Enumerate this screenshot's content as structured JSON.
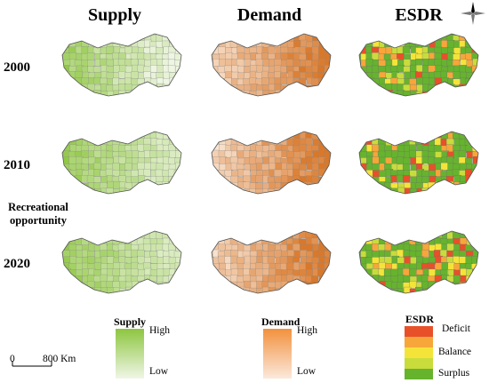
{
  "columns": [
    "Supply",
    "Demand",
    "ESDR"
  ],
  "rows": [
    "2000",
    "2010",
    "2020"
  ],
  "side_label": [
    "Recreational",
    "opportunity"
  ],
  "legends": {
    "supply": {
      "title": "Supply",
      "high": "High",
      "low": "Low",
      "colors": [
        "#8dc63f",
        "#f0f6e6"
      ]
    },
    "demand": {
      "title": "Demand",
      "high": "High",
      "low": "Low",
      "colors": [
        "#f2913d",
        "#fbe9dc"
      ]
    },
    "esdr": {
      "title": "ESDR",
      "classes": [
        "Deficit",
        "",
        "Balance",
        "",
        "Surplus"
      ],
      "colors": [
        "#e8502a",
        "#f7a63a",
        "#f4e43a",
        "#c8dc3c",
        "#66b32e"
      ]
    }
  },
  "scale_bar": {
    "start": "0",
    "end": "800 Km"
  },
  "icons": {
    "north": "north-arrow-icon"
  }
}
